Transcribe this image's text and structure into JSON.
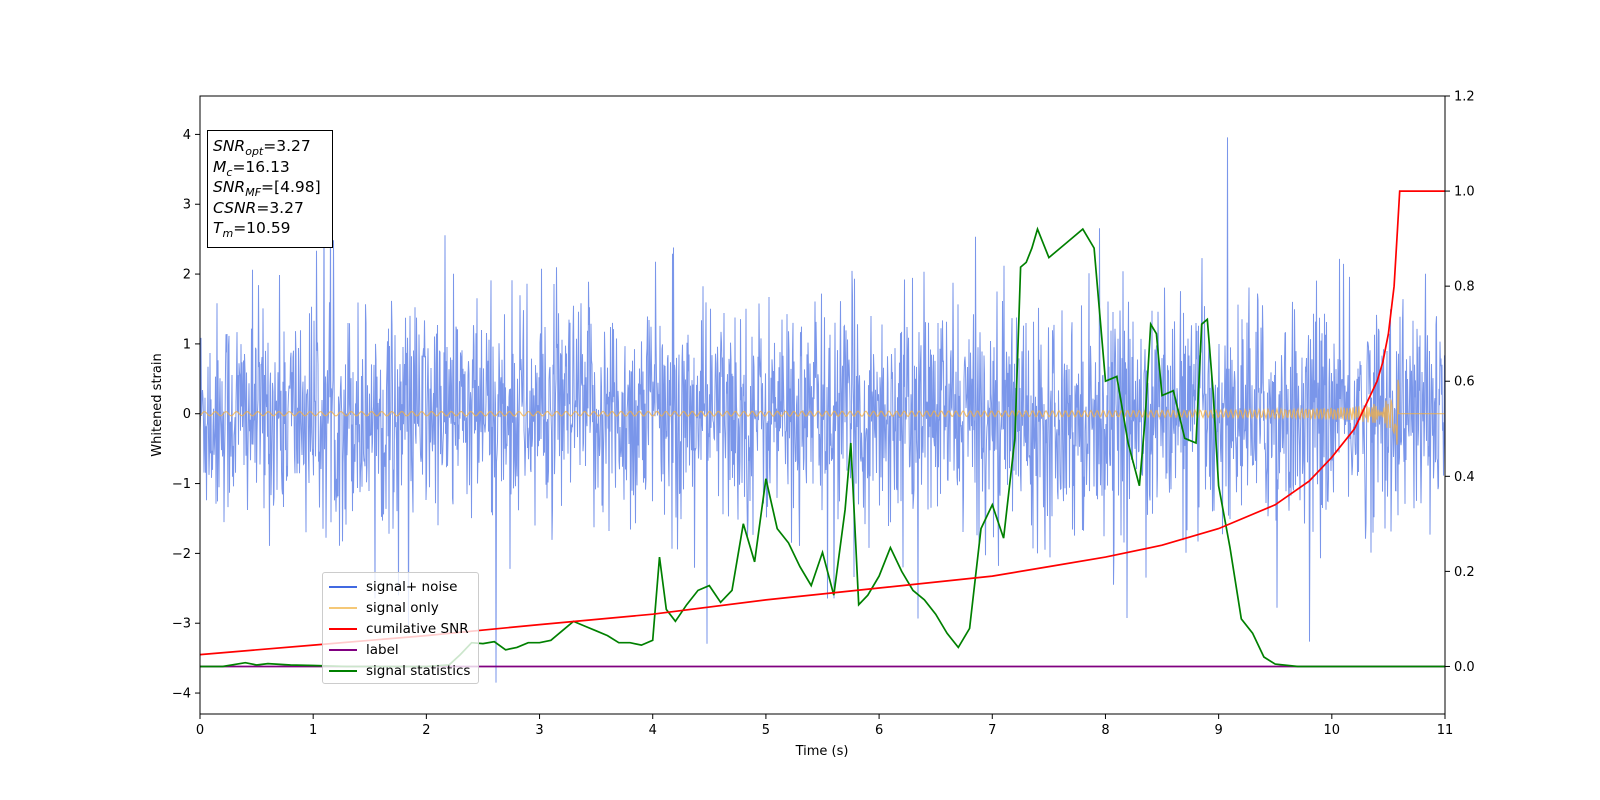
{
  "chart_data": {
    "type": "line",
    "title": "",
    "xlabel": "Time (s)",
    "ylabel": "Whitened strain",
    "xlim": [
      0,
      11
    ],
    "ylim": [
      -4.3,
      4.55
    ],
    "ylim_right": [
      -0.1,
      1.2
    ],
    "x_ticks": [
      "0",
      "1",
      "2",
      "3",
      "4",
      "5",
      "6",
      "7",
      "8",
      "9",
      "10",
      "11"
    ],
    "y_ticks": [
      "−4",
      "−3",
      "−2",
      "−1",
      "0",
      "1",
      "2",
      "3",
      "4"
    ],
    "y_right_ticks": [
      "0.0",
      "0.2",
      "0.4",
      "0.6",
      "0.8",
      "1.0",
      "1.2"
    ],
    "grid": false,
    "legend_position": "lower-left",
    "annotation": {
      "snr_opt": "=3.27",
      "mc": "=16.13",
      "snr_mf": "=[4.98]",
      "csnr": "=3.27",
      "tm": "=10.59"
    },
    "series": [
      {
        "name": "signal+ noise",
        "color": "#4169e1",
        "axis": "left",
        "description_values": {
          "approx_range": [
            -3.85,
            4.15
          ]
        },
        "values": []
      },
      {
        "name": "signal only",
        "color": "#f5b041",
        "axis": "left",
        "chirp": {
          "start": 0,
          "merger": 10.59,
          "peak_amplitude": 0.6
        },
        "values": []
      },
      {
        "name": "cumilative SNR",
        "color": "#ff0000",
        "axis": "right",
        "x": [
          0,
          1,
          2,
          3,
          4,
          5,
          6,
          7,
          7.5,
          8,
          8.5,
          9,
          9.5,
          9.8,
          10,
          10.2,
          10.3,
          10.4,
          10.45,
          10.5,
          10.55,
          10.58,
          10.6,
          11
        ],
        "values": [
          0.025,
          0.045,
          0.065,
          0.088,
          0.11,
          0.14,
          0.165,
          0.19,
          0.21,
          0.23,
          0.255,
          0.29,
          0.34,
          0.39,
          0.44,
          0.5,
          0.55,
          0.6,
          0.64,
          0.7,
          0.8,
          0.92,
          1.0,
          1.0
        ]
      },
      {
        "name": "label",
        "color": "#800080",
        "axis": "right",
        "x": [
          0,
          11
        ],
        "values": [
          0,
          0
        ]
      },
      {
        "name": "signal statistics",
        "color": "#008000",
        "axis": "right",
        "x": [
          0,
          0.2,
          0.4,
          0.5,
          0.6,
          0.8,
          1.0,
          1.3,
          1.6,
          2.0,
          2.2,
          2.3,
          2.4,
          2.5,
          2.6,
          2.7,
          2.8,
          2.9,
          3.0,
          3.1,
          3.2,
          3.3,
          3.4,
          3.5,
          3.6,
          3.7,
          3.8,
          3.9,
          4.0,
          4.06,
          4.12,
          4.2,
          4.3,
          4.4,
          4.5,
          4.6,
          4.7,
          4.8,
          4.9,
          5.0,
          5.1,
          5.2,
          5.3,
          5.4,
          5.5,
          5.6,
          5.7,
          5.75,
          5.82,
          5.9,
          6.0,
          6.1,
          6.2,
          6.3,
          6.4,
          6.5,
          6.6,
          6.7,
          6.8,
          6.9,
          7.0,
          7.1,
          7.2,
          7.25,
          7.3,
          7.35,
          7.4,
          7.5,
          7.6,
          7.7,
          7.8,
          7.9,
          8.0,
          8.1,
          8.2,
          8.3,
          8.35,
          8.4,
          8.45,
          8.5,
          8.6,
          8.7,
          8.8,
          8.85,
          8.9,
          8.95,
          9.0,
          9.1,
          9.2,
          9.3,
          9.4,
          9.5,
          9.7,
          10.0,
          11
        ],
        "values": [
          0.0,
          0.0,
          0.008,
          0.003,
          0.006,
          0.003,
          0.002,
          0.0,
          0.0,
          0.0,
          0.003,
          0.025,
          0.05,
          0.048,
          0.052,
          0.035,
          0.04,
          0.05,
          0.05,
          0.055,
          0.075,
          0.095,
          0.085,
          0.075,
          0.065,
          0.05,
          0.05,
          0.045,
          0.055,
          0.23,
          0.12,
          0.095,
          0.13,
          0.16,
          0.17,
          0.135,
          0.16,
          0.3,
          0.22,
          0.395,
          0.29,
          0.26,
          0.21,
          0.17,
          0.24,
          0.15,
          0.33,
          0.47,
          0.13,
          0.15,
          0.19,
          0.25,
          0.2,
          0.16,
          0.14,
          0.11,
          0.07,
          0.04,
          0.08,
          0.29,
          0.34,
          0.27,
          0.48,
          0.84,
          0.85,
          0.88,
          0.92,
          0.86,
          0.88,
          0.9,
          0.92,
          0.88,
          0.6,
          0.61,
          0.47,
          0.38,
          0.52,
          0.72,
          0.7,
          0.57,
          0.58,
          0.48,
          0.47,
          0.72,
          0.73,
          0.58,
          0.38,
          0.25,
          0.1,
          0.07,
          0.02,
          0.005,
          0.0,
          0.0,
          0.0
        ]
      }
    ]
  }
}
